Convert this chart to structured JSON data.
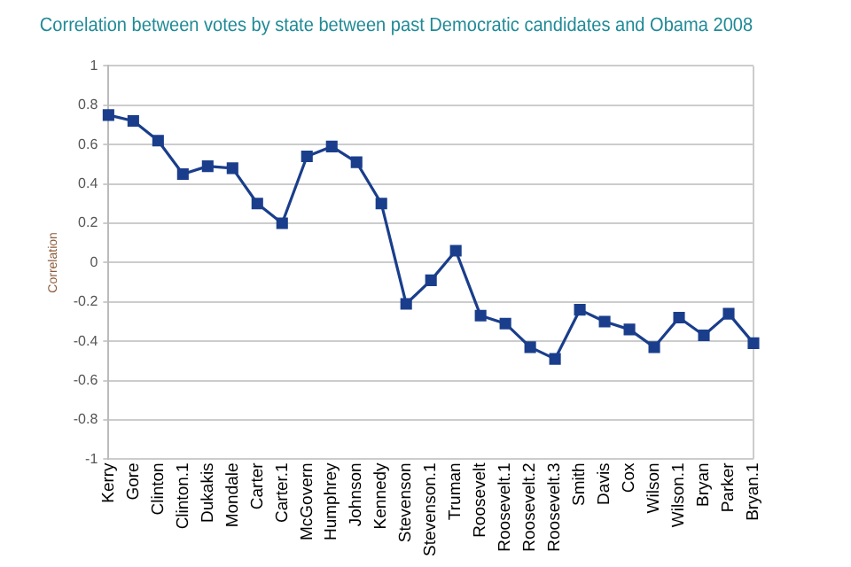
{
  "chart_data": {
    "type": "line",
    "title": "Correlation between votes by state between past Democratic candidates and Obama 2008",
    "ylabel": "Correlation",
    "categories": [
      "Kerry",
      "Gore",
      "Clinton",
      "Clinton.1",
      "Dukakis",
      "Mondale",
      "Carter",
      "Carter.1",
      "McGovern",
      "Humphrey",
      "Johnson",
      "Kennedy",
      "Stevenson",
      "Stevenson.1",
      "Truman",
      "Roosevelt",
      "Roosevelt.1",
      "Roosevelt.2",
      "Roosevelt.3",
      "Smith",
      "Davis",
      "Cox",
      "Wilson",
      "Wilson.1",
      "Bryan",
      "Parker",
      "Bryan.1"
    ],
    "series": [
      {
        "color": "#1a3e8c",
        "values": [
          0.75,
          0.72,
          0.62,
          0.45,
          0.49,
          0.48,
          0.3,
          0.2,
          0.54,
          0.59,
          0.51,
          0.3,
          -0.21,
          -0.09,
          0.06,
          -0.27,
          -0.31,
          -0.43,
          -0.49,
          -0.24,
          -0.3,
          -0.34,
          -0.43,
          -0.28,
          -0.37,
          -0.26,
          -0.41
        ]
      }
    ],
    "ylim": [
      -1,
      1
    ],
    "yticks": [
      -1,
      -0.8,
      -0.6,
      -0.4,
      -0.2,
      0,
      0.2,
      0.4,
      0.6,
      0.8,
      1
    ],
    "grid": "y",
    "legend": false,
    "marker": "square",
    "line_style": "solid"
  }
}
